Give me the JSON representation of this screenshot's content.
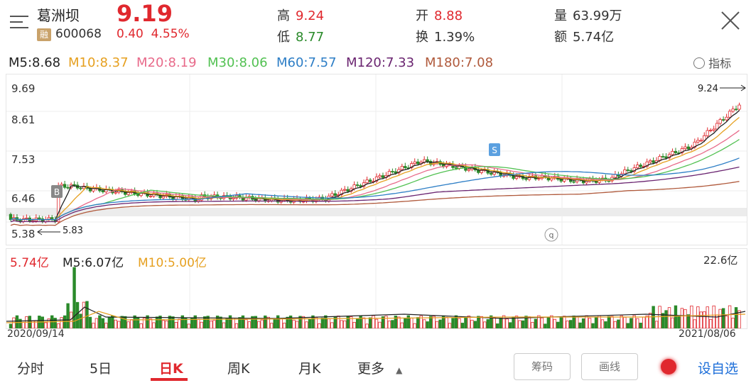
{
  "header": {
    "stock_name": "葛洲坝",
    "margin_badge": "融",
    "stock_code": "600068",
    "price": "9.19",
    "change": "0.40",
    "change_pct": "4.55%",
    "high_label": "高",
    "high": "9.24",
    "low_label": "低",
    "low": "8.77",
    "open_label": "开",
    "open": "8.88",
    "turnover_label": "换",
    "turnover": "1.39%",
    "volume_label": "量",
    "volume": "63.99万",
    "amount_label": "额",
    "amount": "5.74亿"
  },
  "ma": {
    "m5": "M5:8.68",
    "m10": "M10:8.37",
    "m20": "M20:8.19",
    "m30": "M30:8.06",
    "m60": "M60:7.57",
    "m120": "M120:7.33",
    "m180": "M180:7.08",
    "indicator_label": "指标"
  },
  "colors": {
    "up": "#e0282e",
    "down": "#2a8a2a",
    "m5": "#222222",
    "m10": "#e6a020",
    "m20": "#e86a8a",
    "m30": "#52c152",
    "m60": "#2d7ec6",
    "m120": "#6a2470",
    "m180": "#b05a3c"
  },
  "price_axis": {
    "ticks": [
      "9.69",
      "8.61",
      "7.53",
      "6.46",
      "5.38"
    ],
    "max_mark": "9.24",
    "min_mark": "5.83",
    "buy_marker": "B",
    "sell_marker": "S",
    "q_marker": "q"
  },
  "volume": {
    "current": "5.74亿",
    "m5": "M5:6.07亿",
    "m10": "M10:5.00亿",
    "max_label": "22.6亿"
  },
  "dates": {
    "start": "2020/09/14",
    "end": "2021/08/06"
  },
  "tabs": [
    {
      "label": "分时"
    },
    {
      "label": "5日"
    },
    {
      "label": "日K"
    },
    {
      "label": "周K"
    },
    {
      "label": "月K"
    },
    {
      "label": "更多"
    }
  ],
  "buttons": {
    "chips": "筹码",
    "draw": "画线",
    "settings": "设自选"
  }
}
